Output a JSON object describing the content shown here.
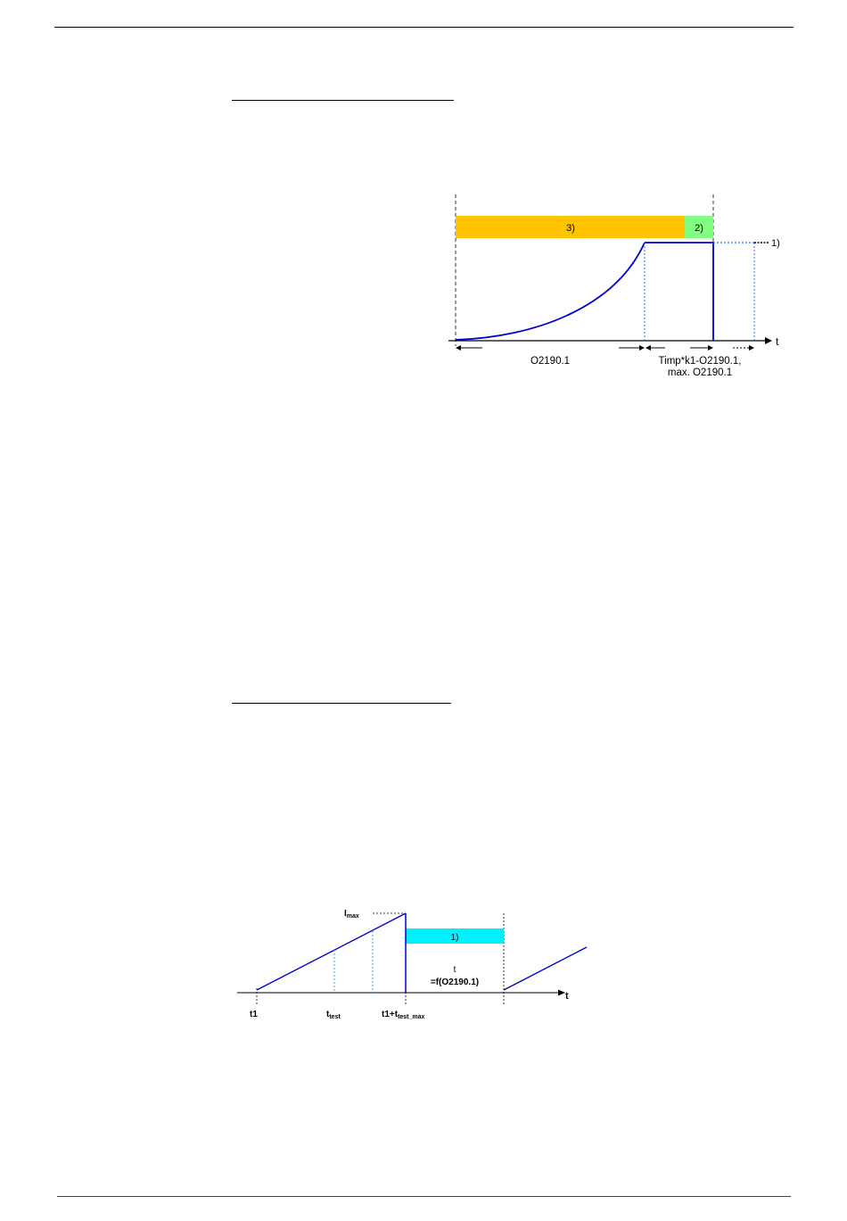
{
  "figure1": {
    "labels": {
      "bar_orange": "3)",
      "bar_green": "2)",
      "level": "1)",
      "axis": "t",
      "interval_1": "O2190.1",
      "interval_2_line1": "Timp*k1-O2190.1,",
      "interval_2_line2": "max. O2190.1"
    },
    "colors": {
      "orange": "#ffc300",
      "green": "#80ff80",
      "curve": "#0000cc",
      "dotted": "#3366ff"
    }
  },
  "figure2": {
    "labels": {
      "imax": "I",
      "imax_sub": "max",
      "bar": "1)",
      "t_label": "t",
      "t_func": "=f(O2190.1)",
      "axis": "t",
      "t1": "t1",
      "ttest": "t",
      "ttest_sub": "test",
      "t1max": "t1+t",
      "t1max_sub": "test_max"
    },
    "colors": {
      "cyan": "#00f0ff",
      "ramp": "#0000cc",
      "dotted": "#33aaff"
    }
  }
}
